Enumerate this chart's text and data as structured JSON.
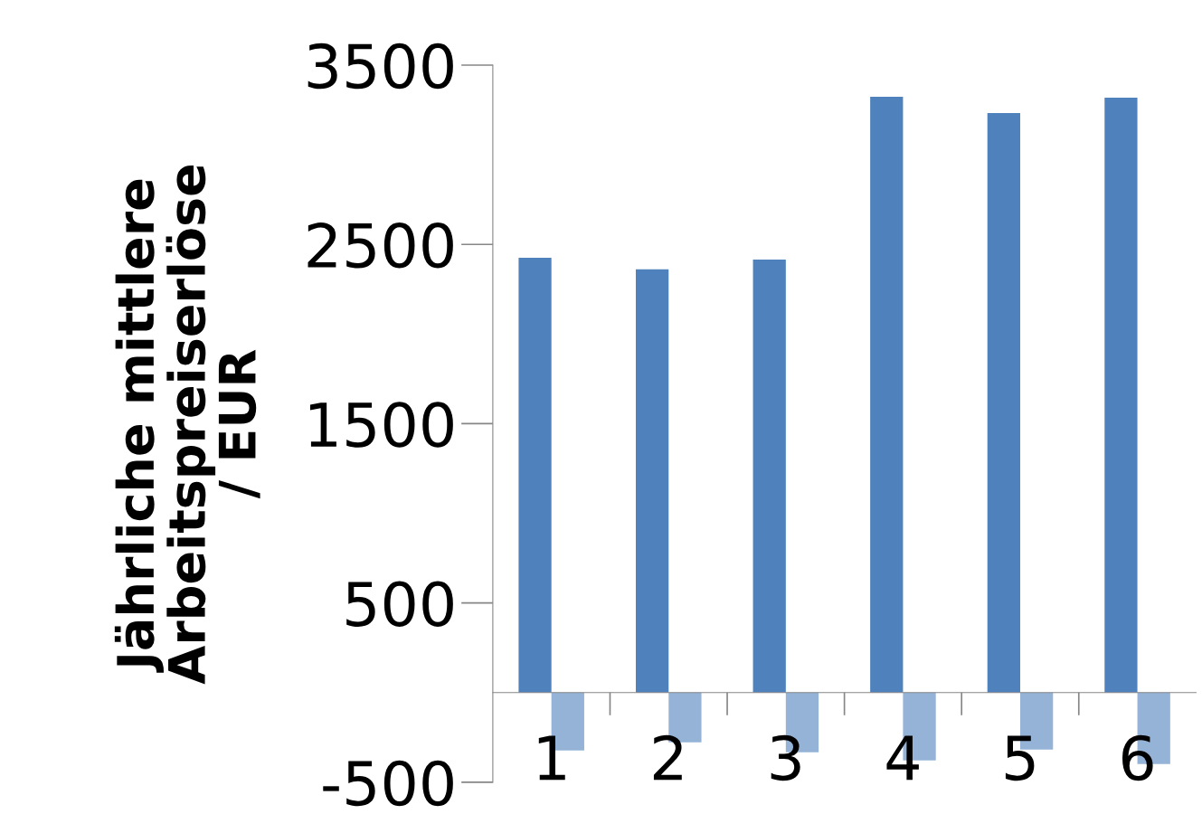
{
  "chart_data": {
    "type": "bar",
    "ylabel": "Jährliche mittlere\nArbeitspreiserlöse\n/ EUR",
    "categories": [
      "1",
      "2",
      "3",
      "4",
      "5",
      "6"
    ],
    "series": [
      {
        "color": "#4f81bd",
        "values": [
          2426,
          2361,
          2416,
          3324,
          3233,
          3319
        ]
      },
      {
        "color": "#95b3d7",
        "values": [
          -323,
          -277,
          -333,
          -378,
          -318,
          -398
        ]
      }
    ],
    "ylim": [
      -500,
      3500
    ],
    "yticks": [
      -500,
      500,
      1500,
      2500,
      3500
    ],
    "grid": false,
    "legend": false
  }
}
